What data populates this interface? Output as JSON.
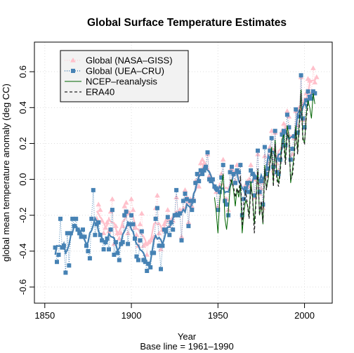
{
  "chart_data": {
    "type": "line",
    "title": "Global Surface Temperature Estimates",
    "xlabel": "Year",
    "xlabel2": "Base line = 1961–1990",
    "ylabel": "global mean temperature anomaly (deg CC)",
    "xlim": [
      1850,
      2010
    ],
    "ylim": [
      -0.65,
      0.75
    ],
    "xticks": [
      1850,
      1900,
      1950,
      2000
    ],
    "yticks": [
      -0.6,
      -0.4,
      -0.2,
      0.0,
      0.2,
      0.4,
      0.6
    ],
    "grid": true,
    "legend_position": "top-left",
    "series": [
      {
        "name": "Global (NASA–GISS)",
        "color": "#ffc0cb",
        "marker": "triangle",
        "x": [
          1880,
          1881,
          1882,
          1883,
          1884,
          1885,
          1886,
          1887,
          1888,
          1889,
          1890,
          1891,
          1892,
          1893,
          1894,
          1895,
          1896,
          1897,
          1898,
          1899,
          1900,
          1901,
          1902,
          1903,
          1904,
          1905,
          1906,
          1907,
          1908,
          1909,
          1910,
          1911,
          1912,
          1913,
          1914,
          1915,
          1916,
          1917,
          1918,
          1919,
          1920,
          1921,
          1922,
          1923,
          1924,
          1925,
          1926,
          1927,
          1928,
          1929,
          1930,
          1931,
          1932,
          1933,
          1934,
          1935,
          1936,
          1937,
          1938,
          1939,
          1940,
          1941,
          1942,
          1943,
          1944,
          1945,
          1946,
          1947,
          1948,
          1949,
          1950,
          1951,
          1952,
          1953,
          1954,
          1955,
          1956,
          1957,
          1958,
          1959,
          1960,
          1961,
          1962,
          1963,
          1964,
          1965,
          1966,
          1967,
          1968,
          1969,
          1970,
          1971,
          1972,
          1973,
          1974,
          1975,
          1976,
          1977,
          1978,
          1979,
          1980,
          1981,
          1982,
          1983,
          1984,
          1985,
          1986,
          1987,
          1988,
          1989,
          1990,
          1991,
          1992,
          1993,
          1994,
          1995,
          1996,
          1997,
          1998,
          1999,
          2000,
          2001,
          2002,
          2003,
          2004,
          2005,
          2006,
          2007
        ],
        "y": [
          -0.22,
          -0.14,
          -0.17,
          -0.23,
          -0.3,
          -0.27,
          -0.24,
          -0.29,
          -0.18,
          -0.11,
          -0.36,
          -0.26,
          -0.3,
          -0.33,
          -0.3,
          -0.26,
          -0.15,
          -0.13,
          -0.3,
          -0.19,
          -0.11,
          -0.17,
          -0.27,
          -0.31,
          -0.37,
          -0.25,
          -0.19,
          -0.37,
          -0.36,
          -0.42,
          -0.35,
          -0.34,
          -0.33,
          -0.32,
          -0.16,
          -0.09,
          -0.3,
          -0.39,
          -0.28,
          -0.25,
          -0.23,
          -0.17,
          -0.26,
          -0.24,
          -0.23,
          -0.2,
          -0.1,
          -0.19,
          -0.17,
          -0.32,
          -0.12,
          -0.06,
          -0.1,
          -0.24,
          -0.11,
          -0.15,
          -0.11,
          -0.01,
          -0.01,
          -0.04,
          0.09,
          0.11,
          0.09,
          0.07,
          0.14,
          0.02,
          -0.01,
          0.0,
          -0.04,
          -0.07,
          -0.15,
          -0.04,
          0.03,
          0.11,
          -0.11,
          -0.11,
          -0.17,
          0.05,
          0.06,
          0.04,
          -0.01,
          0.08,
          0.04,
          0.08,
          -0.21,
          -0.11,
          -0.03,
          -0.01,
          -0.04,
          0.08,
          0.03,
          -0.1,
          0.0,
          0.14,
          -0.08,
          -0.05,
          -0.16,
          0.13,
          0.02,
          0.09,
          0.18,
          0.27,
          0.05,
          0.26,
          0.09,
          0.05,
          0.12,
          0.27,
          0.31,
          0.19,
          0.38,
          0.35,
          0.12,
          0.14,
          0.23,
          0.38,
          0.3,
          0.4,
          0.57,
          0.33,
          0.33,
          0.48,
          0.56,
          0.55,
          0.48,
          0.62,
          0.54,
          0.57
        ]
      },
      {
        "name": "Global (UEA–CRU)",
        "color": "#4682b4",
        "marker": "square",
        "x": [
          1856,
          1857,
          1858,
          1859,
          1860,
          1861,
          1862,
          1863,
          1864,
          1865,
          1866,
          1867,
          1868,
          1869,
          1870,
          1871,
          1872,
          1873,
          1874,
          1875,
          1876,
          1877,
          1878,
          1879,
          1880,
          1881,
          1882,
          1883,
          1884,
          1885,
          1886,
          1887,
          1888,
          1889,
          1890,
          1891,
          1892,
          1893,
          1894,
          1895,
          1896,
          1897,
          1898,
          1899,
          1900,
          1901,
          1902,
          1903,
          1904,
          1905,
          1906,
          1907,
          1908,
          1909,
          1910,
          1911,
          1912,
          1913,
          1914,
          1915,
          1916,
          1917,
          1918,
          1919,
          1920,
          1921,
          1922,
          1923,
          1924,
          1925,
          1926,
          1927,
          1928,
          1929,
          1930,
          1931,
          1932,
          1933,
          1934,
          1935,
          1936,
          1937,
          1938,
          1939,
          1940,
          1941,
          1942,
          1943,
          1944,
          1945,
          1946,
          1947,
          1948,
          1949,
          1950,
          1951,
          1952,
          1953,
          1954,
          1955,
          1956,
          1957,
          1958,
          1959,
          1960,
          1961,
          1962,
          1963,
          1964,
          1965,
          1966,
          1967,
          1968,
          1969,
          1970,
          1971,
          1972,
          1973,
          1974,
          1975,
          1976,
          1977,
          1978,
          1979,
          1980,
          1981,
          1982,
          1983,
          1984,
          1985,
          1986,
          1987,
          1988,
          1989,
          1990,
          1991,
          1992,
          1993,
          1994,
          1995,
          1996,
          1997,
          1998,
          1999,
          2000,
          2001,
          2002,
          2003,
          2004,
          2005,
          2006
        ],
        "y": [
          -0.38,
          -0.46,
          -0.42,
          -0.22,
          -0.38,
          -0.37,
          -0.52,
          -0.3,
          -0.48,
          -0.3,
          -0.22,
          -0.26,
          -0.22,
          -0.28,
          -0.3,
          -0.32,
          -0.28,
          -0.32,
          -0.37,
          -0.4,
          -0.44,
          -0.22,
          -0.06,
          -0.31,
          -0.25,
          -0.24,
          -0.31,
          -0.34,
          -0.39,
          -0.35,
          -0.33,
          -0.39,
          -0.28,
          -0.17,
          -0.42,
          -0.35,
          -0.41,
          -0.45,
          -0.36,
          -0.35,
          -0.2,
          -0.18,
          -0.36,
          -0.25,
          -0.2,
          -0.25,
          -0.33,
          -0.43,
          -0.45,
          -0.34,
          -0.29,
          -0.45,
          -0.46,
          -0.51,
          -0.47,
          -0.49,
          -0.41,
          -0.41,
          -0.22,
          -0.16,
          -0.37,
          -0.5,
          -0.37,
          -0.28,
          -0.29,
          -0.21,
          -0.31,
          -0.24,
          -0.28,
          -0.2,
          -0.06,
          -0.2,
          -0.19,
          -0.34,
          -0.12,
          -0.08,
          -0.11,
          -0.26,
          -0.12,
          -0.17,
          -0.12,
          -0.02,
          0.03,
          -0.01,
          0.05,
          0.03,
          0.05,
          0.07,
          0.15,
          0.0,
          -0.01,
          0.0,
          -0.04,
          -0.05,
          -0.17,
          -0.07,
          0.01,
          0.08,
          -0.12,
          -0.14,
          -0.2,
          0.04,
          0.07,
          0.03,
          -0.02,
          0.05,
          0.04,
          0.08,
          -0.2,
          -0.11,
          -0.05,
          -0.02,
          -0.07,
          0.05,
          0.03,
          -0.09,
          0.01,
          0.16,
          -0.07,
          -0.01,
          -0.14,
          0.18,
          0.03,
          0.06,
          0.16,
          0.23,
          0.07,
          0.27,
          0.04,
          0.03,
          0.11,
          0.25,
          0.27,
          0.19,
          0.36,
          0.29,
          0.11,
          0.17,
          0.24,
          0.39,
          0.26,
          0.35,
          0.58,
          0.34,
          0.29,
          0.44,
          0.49,
          0.46,
          0.45,
          0.49,
          0.48
        ]
      },
      {
        "name": "NCEP–reanalysis",
        "color": "#006400",
        "marker": "none",
        "x": [
          1948,
          1949,
          1950,
          1951,
          1952,
          1953,
          1954,
          1955,
          1956,
          1957,
          1958,
          1959,
          1960,
          1961,
          1962,
          1963,
          1964,
          1965,
          1966,
          1967,
          1968,
          1969,
          1970,
          1971,
          1972,
          1973,
          1974,
          1975,
          1976,
          1977,
          1978,
          1979,
          1980,
          1981,
          1982,
          1983,
          1984,
          1985,
          1986,
          1987,
          1988,
          1989,
          1990,
          1991,
          1992,
          1993,
          1994,
          1995,
          1996,
          1997,
          1998,
          1999,
          2000,
          2001,
          2002,
          2003,
          2004,
          2005,
          2006
        ],
        "y": [
          -0.1,
          -0.18,
          -0.3,
          -0.12,
          -0.04,
          0.03,
          -0.22,
          -0.28,
          -0.18,
          -0.05,
          0.0,
          -0.06,
          -0.15,
          -0.05,
          -0.1,
          -0.03,
          -0.3,
          -0.18,
          -0.12,
          -0.14,
          -0.2,
          -0.01,
          -0.1,
          -0.25,
          -0.1,
          0.05,
          -0.2,
          -0.14,
          -0.25,
          0.08,
          -0.05,
          0.0,
          0.1,
          0.18,
          -0.02,
          0.22,
          0.02,
          -0.02,
          0.06,
          0.22,
          0.25,
          0.1,
          0.3,
          0.24,
          -0.02,
          0.05,
          0.14,
          0.3,
          0.16,
          0.32,
          0.5,
          0.24,
          0.2,
          0.36,
          0.44,
          0.4,
          0.34,
          0.48,
          0.42
        ]
      },
      {
        "name": "ERA40",
        "color": "#222222",
        "marker": "none",
        "x": [
          1957,
          1958,
          1959,
          1960,
          1961,
          1962,
          1963,
          1964,
          1965,
          1966,
          1967,
          1968,
          1969,
          1970,
          1971,
          1972,
          1973,
          1974,
          1975,
          1976,
          1977,
          1978,
          1979,
          1980,
          1981,
          1982,
          1983,
          1984,
          1985,
          1986,
          1987,
          1988,
          1989,
          1990,
          1991,
          1992,
          1993,
          1994,
          1995,
          1996,
          1997,
          1998,
          1999,
          2000,
          2001,
          2002
        ],
        "y": [
          0.0,
          -0.02,
          -0.04,
          -0.1,
          -0.05,
          -0.08,
          0.02,
          -0.26,
          -0.14,
          -0.06,
          -0.14,
          -0.22,
          -0.04,
          -0.1,
          -0.3,
          -0.12,
          0.06,
          -0.2,
          -0.12,
          -0.24,
          0.06,
          -0.06,
          0.02,
          0.08,
          0.16,
          -0.04,
          0.2,
          0.0,
          -0.04,
          0.04,
          0.2,
          0.2,
          0.08,
          0.26,
          0.22,
          0.0,
          0.02,
          0.12,
          0.28,
          0.14,
          0.3,
          0.48,
          0.22,
          0.2,
          0.34,
          0.42
        ]
      }
    ]
  }
}
